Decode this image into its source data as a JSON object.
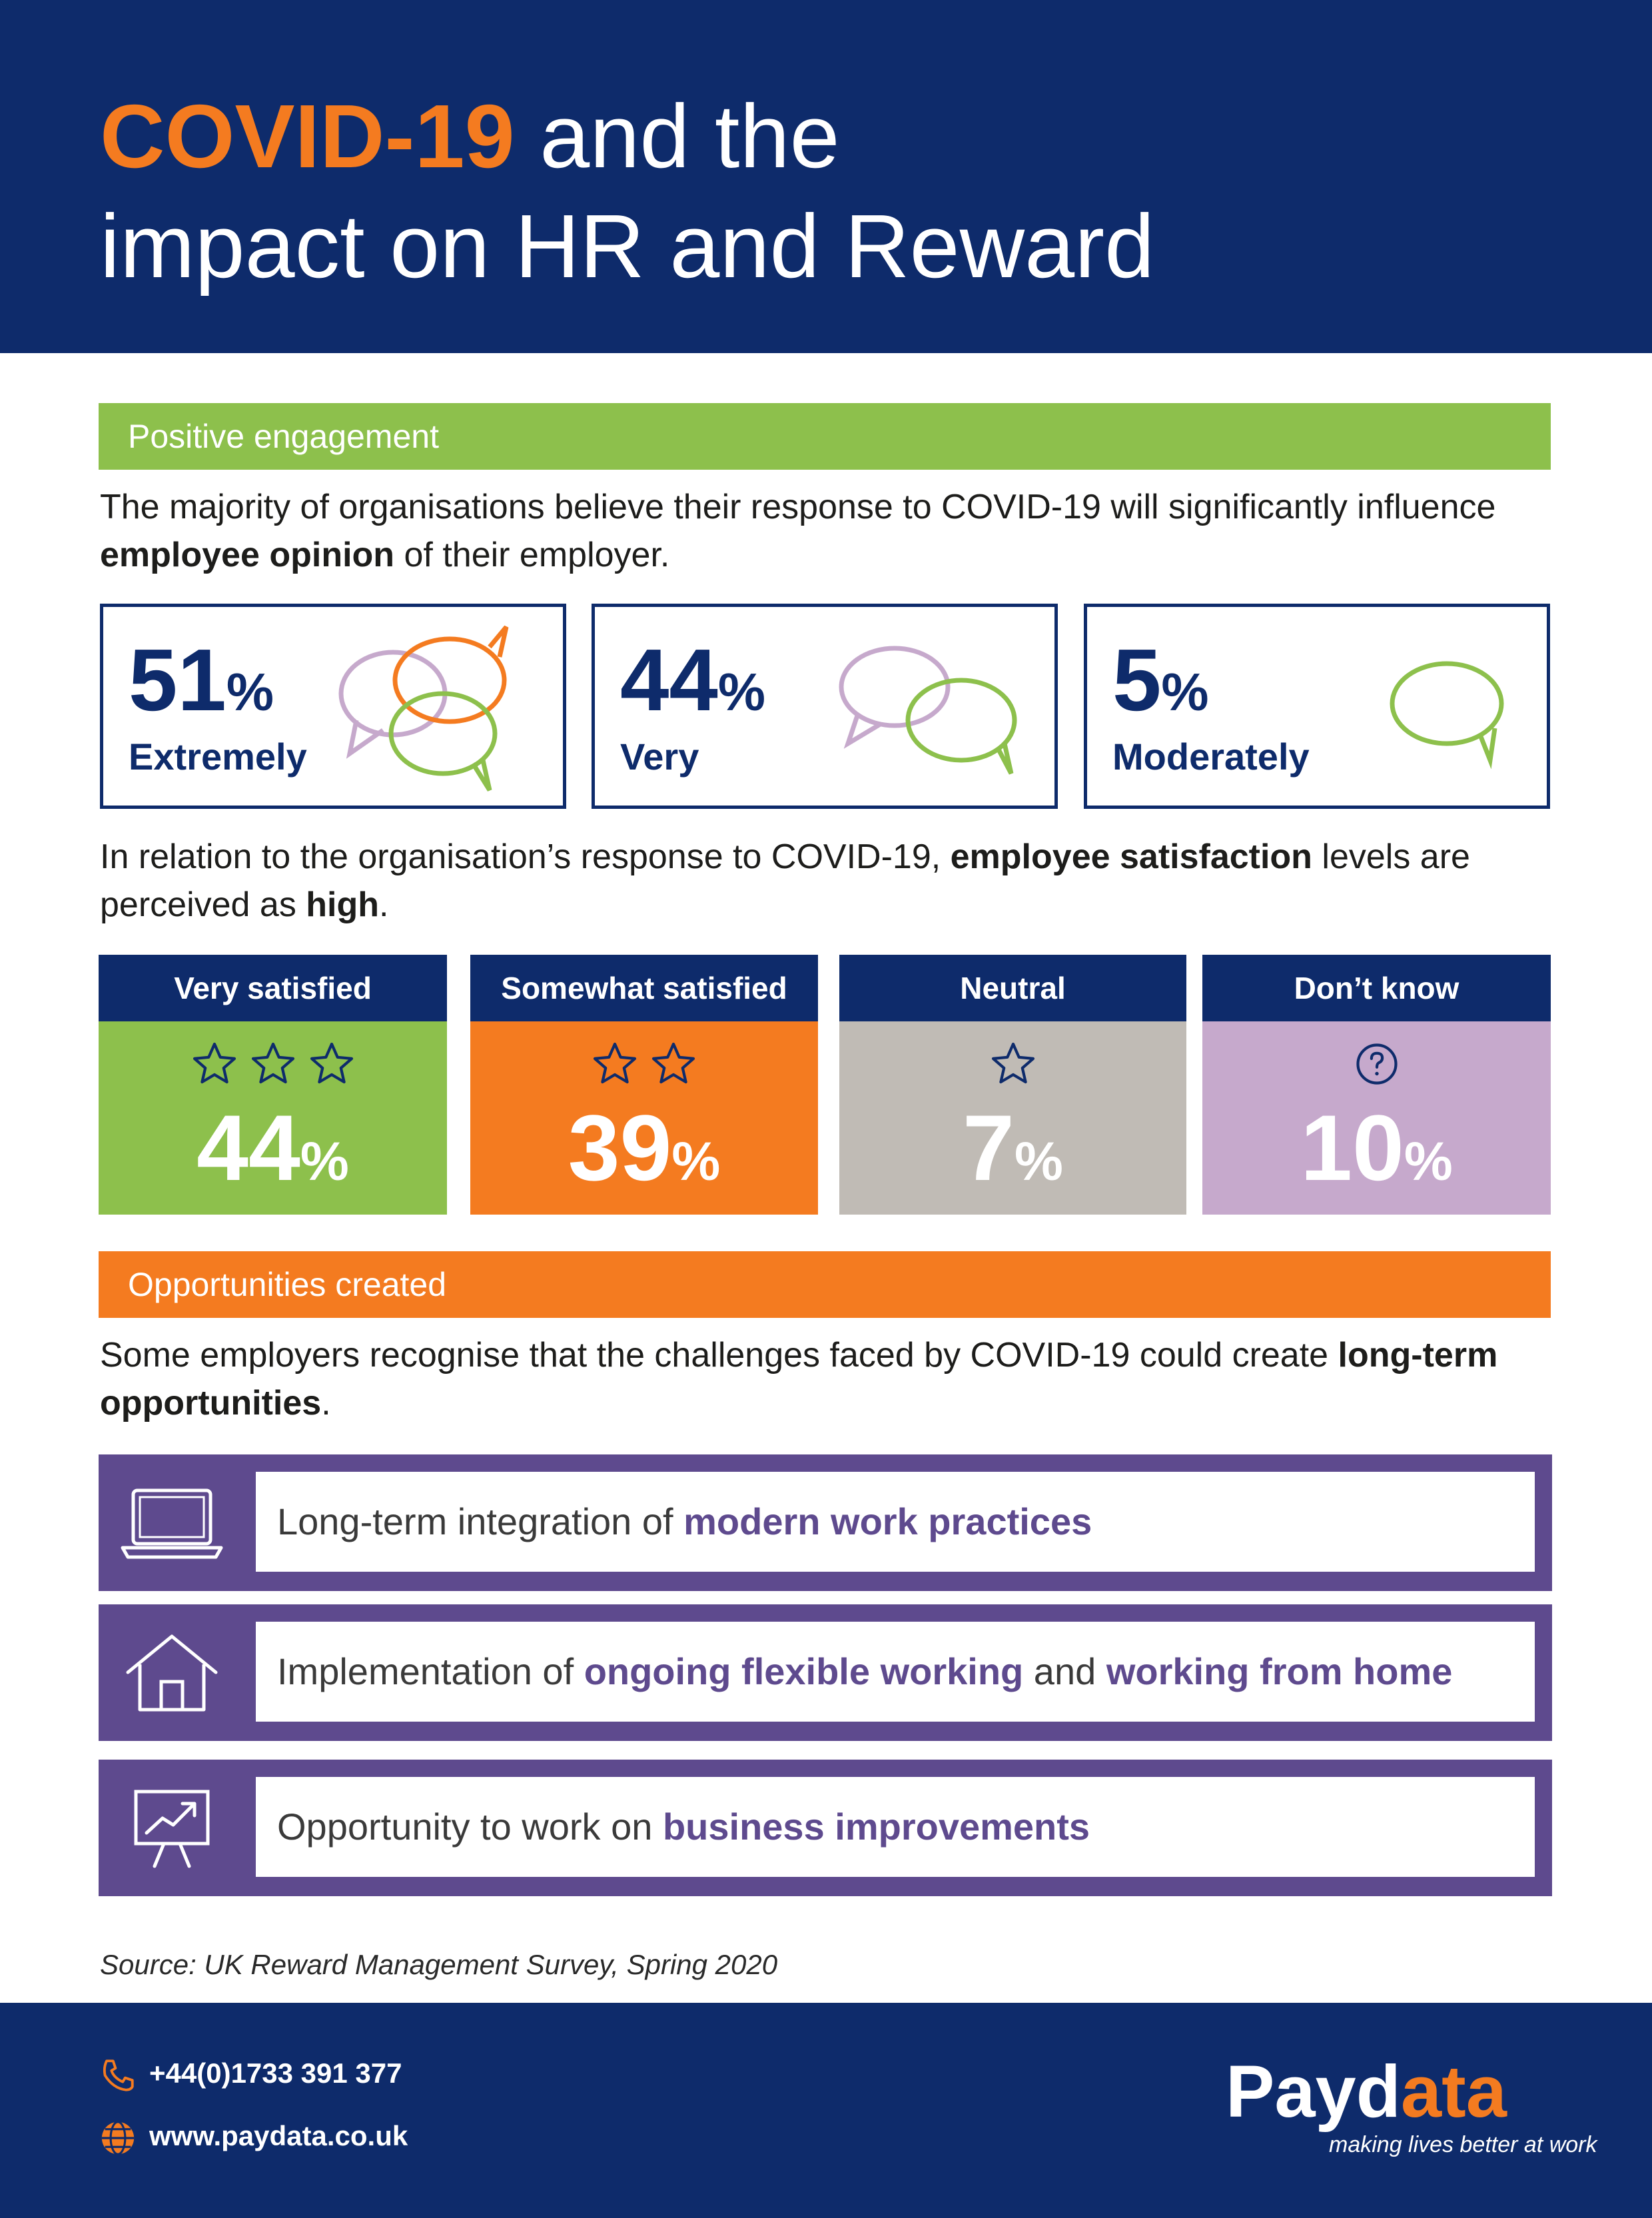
{
  "header": {
    "title_highlight": "COVID-19",
    "title_rest": " and the",
    "title_line2": "impact on HR and Reward"
  },
  "section1": {
    "heading": "Positive engagement",
    "intro_a": "The majority of organisations believe their response to COVID-19 will significantly influence ",
    "intro_bold": "employee opinion",
    "intro_b": " of their employer.",
    "boxes": [
      {
        "value": "51",
        "unit": "%",
        "label": "Extremely"
      },
      {
        "value": "44",
        "unit": "%",
        "label": "Very"
      },
      {
        "value": "5",
        "unit": "%",
        "label": "Moderately"
      }
    ],
    "satisfaction_a": "In relation to the organisation’s response to COVID-19, ",
    "satisfaction_bold1": "employee satisfaction",
    "satisfaction_b": " levels are perceived as ",
    "satisfaction_bold2": "high",
    "satisfaction_c": ".",
    "columns": [
      {
        "header": "Very satisfied",
        "value": "44",
        "unit": "%",
        "stars": 3,
        "color": "#8dc04c"
      },
      {
        "header": "Somewhat satisfied",
        "value": "39",
        "unit": "%",
        "stars": 2,
        "color": "#f47b20"
      },
      {
        "header": "Neutral",
        "value": "7",
        "unit": "%",
        "stars": 1,
        "color": "#c0bbb5"
      },
      {
        "header": "Don’t know",
        "value": "10",
        "unit": "%",
        "stars": 0,
        "color": "#c6a9cc"
      }
    ]
  },
  "section2": {
    "heading": "Opportunities created",
    "intro_a": "Some employers recognise that the challenges faced by COVID-19 could create ",
    "intro_bold": "long-term opportunities",
    "intro_b": ".",
    "rows": [
      {
        "icon": "laptop-icon",
        "a": "Long-term integration of ",
        "b1": "modern work practices",
        "c": "",
        "b2": ""
      },
      {
        "icon": "house-icon",
        "a": "Implementation of ",
        "b1": "ongoing flexible working",
        "c": " and ",
        "b2": "working from home"
      },
      {
        "icon": "presentation-chart-icon",
        "a": "Opportunity to work on ",
        "b1": "business improvements",
        "c": "",
        "b2": ""
      }
    ]
  },
  "source": "Source: UK Reward Management Survey, Spring 2020",
  "footer": {
    "phone": "+44(0)1733 391 377",
    "website": "www.paydata.co.uk",
    "logo_a": "Payd",
    "logo_b": "ata",
    "tagline": "making lives better at work"
  },
  "colors": {
    "navy": "#0e2b6b",
    "orange": "#f47b20",
    "green": "#8dc04c",
    "purple": "#5e4a8e",
    "grey": "#c0bbb5",
    "lilac": "#c6a9cc"
  }
}
